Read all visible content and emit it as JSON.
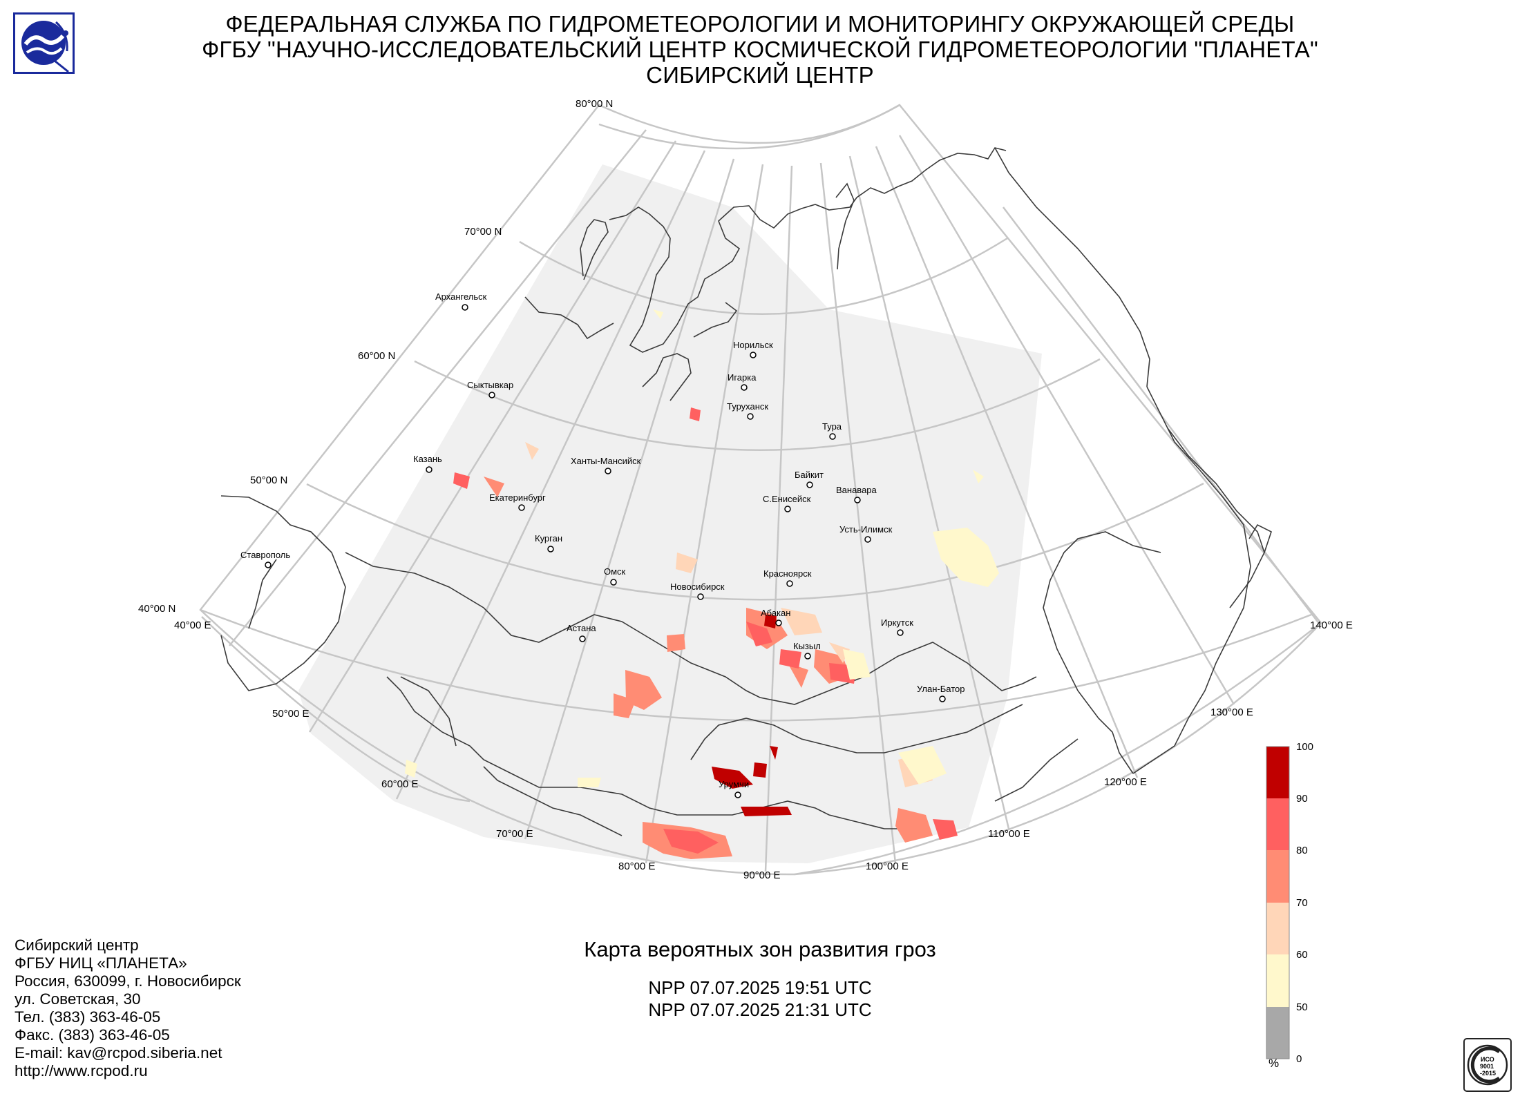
{
  "header": {
    "line1": "ФЕДЕРАЛЬНАЯ СЛУЖБА ПО ГИДРОМЕТЕОРОЛОГИИ И МОНИТОРИНГУ ОКРУЖАЮЩЕЙ СРЕДЫ",
    "line2": "ФГБУ \"НАУЧНО-ИССЛЕДОВАТЕЛЬСКИЙ ЦЕНТР КОСМИЧЕСКОЙ ГИДРОМЕТЕОРОЛОГИИ \"ПЛАНЕТА\"",
    "line3": "СИБИРСКИЙ ЦЕНТР"
  },
  "map": {
    "lat_labels": [
      "80°00 N",
      "70°00 N",
      "60°00 N",
      "50°00 N",
      "40°00 N"
    ],
    "lon_labels": [
      "40°00 E",
      "50°00 E",
      "60°00 E",
      "70°00 E",
      "80°00 E",
      "90°00 E",
      "100°00 E",
      "110°00 E",
      "120°00 E",
      "130°00 E",
      "140°00 E"
    ],
    "cities": [
      {
        "name": "Архангельск"
      },
      {
        "name": "Сыктывкар"
      },
      {
        "name": "Казань"
      },
      {
        "name": "Екатеринбург"
      },
      {
        "name": "Ханты-Мансийск"
      },
      {
        "name": "Курган"
      },
      {
        "name": "Ставрополь"
      },
      {
        "name": "Омск"
      },
      {
        "name": "Астана"
      },
      {
        "name": "Новосибирск"
      },
      {
        "name": "Норильск"
      },
      {
        "name": "Игарка"
      },
      {
        "name": "Туруханск"
      },
      {
        "name": "Тура"
      },
      {
        "name": "Байкит"
      },
      {
        "name": "С.Енисейск"
      },
      {
        "name": "Ванавара"
      },
      {
        "name": "Усть-Илимск"
      },
      {
        "name": "Красноярск"
      },
      {
        "name": "Абакан"
      },
      {
        "name": "Кызыл"
      },
      {
        "name": "Иркутск"
      },
      {
        "name": "Улан-Батор"
      },
      {
        "name": "Урумчи"
      }
    ]
  },
  "legend": {
    "ticks": [
      "100",
      "90",
      "80",
      "70",
      "60",
      "50",
      "0"
    ],
    "unit": "%",
    "colors": [
      "#c00000",
      "#ff6060",
      "#ff8c74",
      "#ffd6b8",
      "#fff8cc",
      "#a8a8a8"
    ]
  },
  "caption": {
    "title": "Карта вероятных зон развития гроз",
    "pass1": "NPP 07.07.2025  19:51 UTC",
    "pass2": "NPP 07.07.2025  21:31 UTC"
  },
  "contacts": [
    "Сибирский центр",
    "ФГБУ НИЦ «ПЛАНЕТА»",
    "Россия, 630099, г. Новосибирск",
    "ул. Советская, 30",
    "Тел. (383) 363-46-05",
    "Факс. (383) 363-46-05",
    "E-mail: kav@rcpod.siberia.net",
    "http://www.rcpod.ru"
  ],
  "iso_mark": {
    "line1": "ИСО",
    "line2": "9001",
    "line3": "-2015"
  }
}
